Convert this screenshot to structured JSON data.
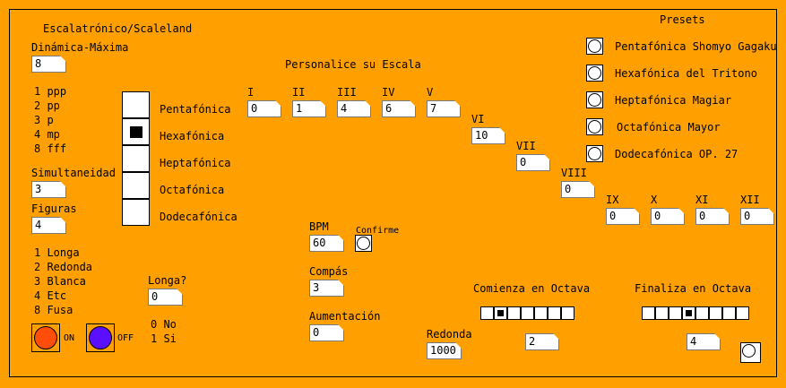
{
  "app": {
    "title": "Escalatrónico/Scaleland",
    "presets_title": "Presets",
    "custom_title": "Personalice su Escala"
  },
  "dinamica": {
    "label": "Dinámica-Máxima",
    "value": "8",
    "options": [
      "1 ppp",
      "2 pp",
      "3 p",
      "4 mp",
      "8 fff"
    ]
  },
  "simultaneidad": {
    "label": "Simultaneidad",
    "value": "3"
  },
  "figuras": {
    "label": "Figuras",
    "value": "4",
    "options": [
      "1 Longa",
      "2 Redonda",
      "3 Blanca",
      "4 Etc",
      "8 Fusa"
    ]
  },
  "scale_types": {
    "items": [
      "Pentafónica",
      "Hexafónica",
      "Heptafónica",
      "Octafónica",
      "Dodecafónica"
    ],
    "selected": "Hexafónica"
  },
  "degrees": [
    {
      "label": "I",
      "value": "0"
    },
    {
      "label": "II",
      "value": "1"
    },
    {
      "label": "III",
      "value": "4"
    },
    {
      "label": "IV",
      "value": "6"
    },
    {
      "label": "V",
      "value": "7"
    },
    {
      "label": "VI",
      "value": "10"
    },
    {
      "label": "VII",
      "value": "0"
    },
    {
      "label": "VIII",
      "value": "0"
    },
    {
      "label": "IX",
      "value": "0"
    },
    {
      "label": "X",
      "value": "0"
    },
    {
      "label": "XI",
      "value": "0"
    },
    {
      "label": "XII",
      "value": "0"
    }
  ],
  "presets": [
    "Pentafónica Shomyo Gagaku",
    "Hexafónica del Tritono",
    "Heptafónica Magiar",
    "Octafónica Mayor",
    "Dodecafónica OP. 27"
  ],
  "bpm": {
    "label": "BPM",
    "value": "60",
    "confirm_label": "Confirme"
  },
  "compas": {
    "label": "Compás",
    "value": "3"
  },
  "aumentacion": {
    "label": "Aumentación",
    "value": "0"
  },
  "redonda": {
    "label": "Redonda",
    "value": "1000"
  },
  "longa": {
    "label": "Longa?",
    "value": "0",
    "options": [
      "0 No",
      "1 Si"
    ]
  },
  "toggles": {
    "on_label": "ON",
    "off_label": "OFF",
    "on_color": "#ff4e0a",
    "off_color": "#5a10ff"
  },
  "comienza": {
    "label": "Comienza en Octava",
    "value": "2",
    "selected_index": 1,
    "cells": 7
  },
  "finaliza": {
    "label": "Finaliza en Octava",
    "value": "4",
    "selected_index": 3,
    "cells": 8
  }
}
